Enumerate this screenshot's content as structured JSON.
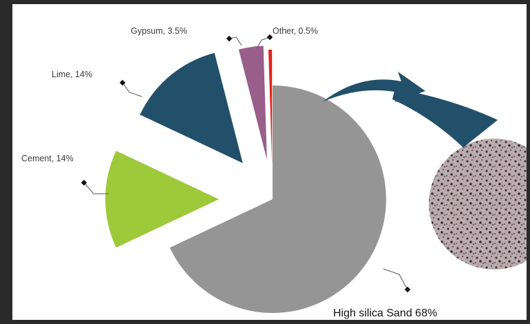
{
  "chart_data": {
    "type": "pie",
    "title": "",
    "slices": [
      {
        "label": "High silica Sand 68%",
        "name": "High silica Sand",
        "value": 68,
        "color": "#959595"
      },
      {
        "label": "Cement, 14%",
        "name": "Cement",
        "value": 14,
        "color": "#9ec93a"
      },
      {
        "label": "Lime, 14%",
        "name": "Lime",
        "value": 14,
        "color": "#22506a"
      },
      {
        "label": "Gypsum, 3.5%",
        "name": "Gypsum",
        "value": 3.5,
        "color": "#9a5e8a"
      },
      {
        "label": "Other, 0.5%",
        "name": "Other",
        "value": 0.5,
        "color": "#e2231a"
      }
    ],
    "legend": "none",
    "grid": false
  },
  "colors": {
    "frame": "#2a2a2a",
    "arrow": "#22506a",
    "material_texture": "#6a5a5f"
  },
  "icons": {
    "arrow": "curved-arrow-icon",
    "texture": "material-micrograph"
  }
}
